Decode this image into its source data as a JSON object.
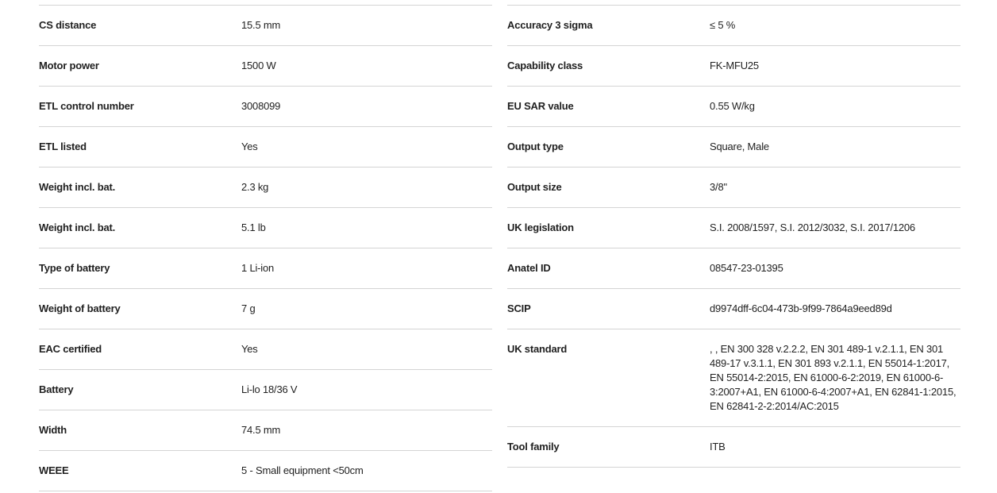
{
  "specs_left": [
    {
      "label": "CS distance",
      "value": "15.5 mm"
    },
    {
      "label": "Motor power",
      "value": "1500 W"
    },
    {
      "label": "ETL control number",
      "value": "3008099"
    },
    {
      "label": "ETL listed",
      "value": "Yes"
    },
    {
      "label": "Weight incl. bat.",
      "value": "2.3 kg"
    },
    {
      "label": "Weight incl. bat.",
      "value": "5.1 lb"
    },
    {
      "label": "Type of battery",
      "value": "1 Li-ion"
    },
    {
      "label": "Weight of battery",
      "value": "7 g"
    },
    {
      "label": "EAC certified",
      "value": "Yes"
    },
    {
      "label": "Battery",
      "value": "Li-lo 18/36 V"
    },
    {
      "label": "Width",
      "value": "74.5 mm"
    },
    {
      "label": "WEEE",
      "value": "5 - Small equipment <50cm"
    }
  ],
  "specs_right": [
    {
      "label": "Accuracy 3 sigma",
      "value": "≤ 5 %"
    },
    {
      "label": "Capability class",
      "value": "FK-MFU25"
    },
    {
      "label": "EU SAR value",
      "value": "0.55 W/kg"
    },
    {
      "label": "Output type",
      "value": "Square, Male"
    },
    {
      "label": "Output size",
      "value": "3/8\""
    },
    {
      "label": "UK legislation",
      "value": "S.I. 2008/1597, S.I. 2012/3032, S.I. 2017/1206"
    },
    {
      "label": "Anatel ID",
      "value": "08547-23-01395"
    },
    {
      "label": "SCIP",
      "value": "d9974dff-6c04-473b-9f99-7864a9eed89d"
    },
    {
      "label": "UK standard",
      "value": ", , EN 300 328 v.2.2.2, EN 301 489-1 v.2.1.1, EN 301 489-17 v.3.1.1, EN 301 893 v.2.1.1, EN 55014-1:2017, EN 55014-2:2015, EN 61000-6-2:2019, EN 61000-6-3:2007+A1, EN 61000-6-4:2007+A1, EN 62841-1:2015, EN 62841-2-2:2014/AC:2015"
    },
    {
      "label": "Tool family",
      "value": "ITB"
    }
  ]
}
